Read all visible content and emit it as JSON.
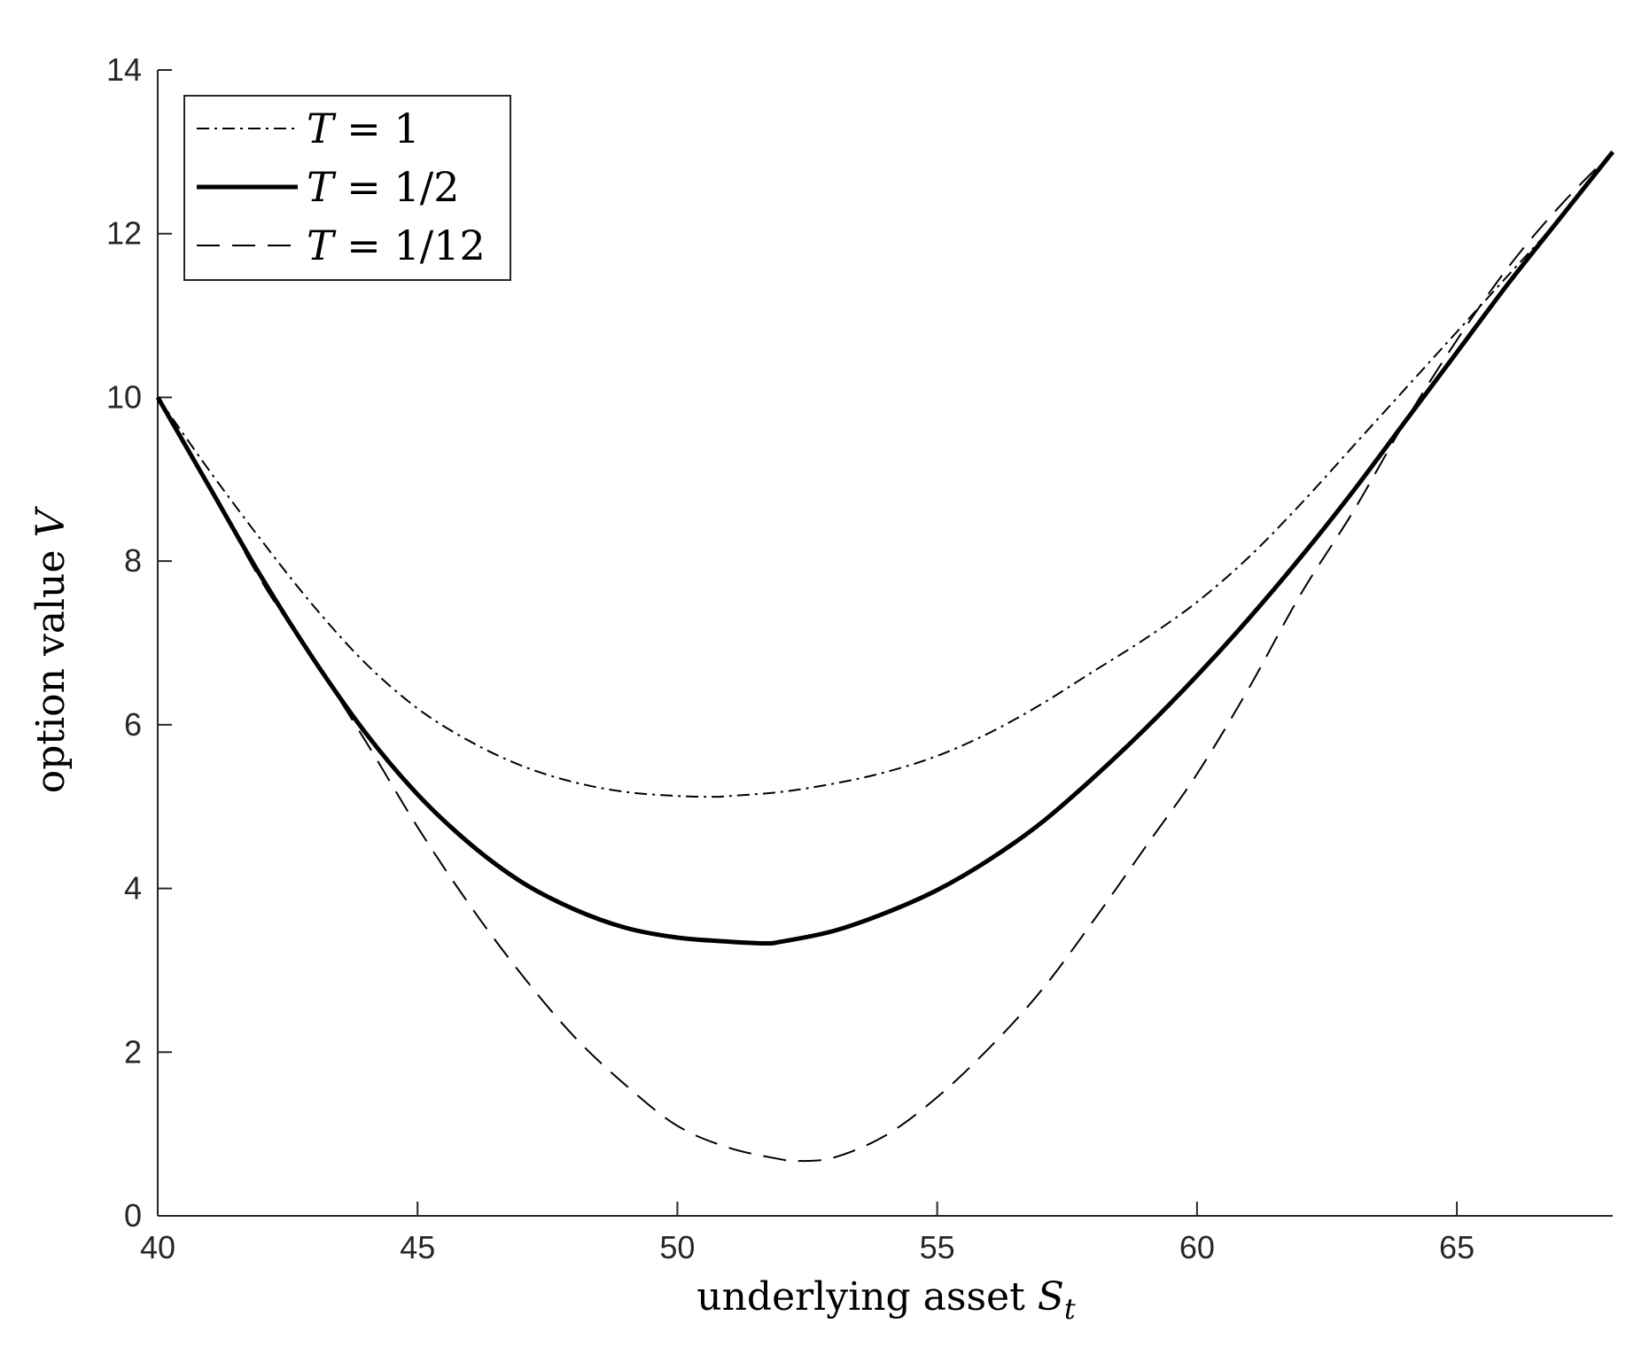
{
  "chart_data": {
    "type": "line",
    "title": "",
    "xlabel": {
      "text": "underlying asset ",
      "var": "S",
      "sub": "t"
    },
    "ylabel": {
      "text": "option value ",
      "var": "V"
    },
    "xlim": [
      40,
      68
    ],
    "ylim": [
      0,
      14
    ],
    "x_ticks": [
      40,
      45,
      50,
      55,
      60,
      65
    ],
    "y_ticks": [
      0,
      2,
      4,
      6,
      8,
      10,
      12,
      14
    ],
    "grid": false,
    "legend_position": "top-left",
    "series": [
      {
        "name": "T = 1",
        "style": "dashdot",
        "color": "#000000",
        "x": [
          40,
          41,
          42,
          43,
          44,
          45,
          46,
          47,
          48,
          49,
          50,
          50.7,
          51,
          52,
          53,
          54,
          55,
          56,
          57,
          58,
          59,
          60,
          61,
          62,
          63,
          64,
          65,
          66,
          67,
          68
        ],
        "y": [
          10,
          9.1,
          8.25,
          7.45,
          6.75,
          6.2,
          5.8,
          5.5,
          5.3,
          5.18,
          5.13,
          5.12,
          5.13,
          5.18,
          5.28,
          5.42,
          5.62,
          5.9,
          6.25,
          6.65,
          7.05,
          7.5,
          8.05,
          8.7,
          9.4,
          10.1,
          10.8,
          11.5,
          12.2,
          13.0
        ]
      },
      {
        "name": "T = 1/2",
        "style": "solid",
        "color": "#000000",
        "x": [
          40,
          41,
          42,
          43,
          44,
          45,
          46,
          47,
          48,
          49,
          50,
          51,
          51.7,
          52,
          53,
          54,
          55,
          56,
          57,
          58,
          59,
          60,
          61,
          62,
          63,
          64,
          65,
          66,
          67,
          68
        ],
        "y": [
          10,
          8.9,
          7.8,
          6.8,
          5.9,
          5.15,
          4.55,
          4.08,
          3.75,
          3.52,
          3.4,
          3.35,
          3.33,
          3.35,
          3.48,
          3.7,
          3.98,
          4.35,
          4.8,
          5.35,
          5.95,
          6.6,
          7.3,
          8.05,
          8.85,
          9.7,
          10.55,
          11.4,
          12.2,
          13.0
        ]
      },
      {
        "name": "T = 1/12",
        "style": "dashed",
        "color": "#000000",
        "x": [
          40,
          41,
          42,
          43,
          44,
          45,
          46,
          47,
          48,
          49,
          50,
          51,
          52,
          52.3,
          53,
          54,
          55,
          56,
          57,
          58,
          59,
          60,
          61,
          62,
          63,
          64,
          65,
          66,
          67,
          68
        ],
        "y": [
          10,
          8.9,
          7.75,
          6.8,
          5.8,
          4.75,
          3.8,
          2.95,
          2.2,
          1.6,
          1.1,
          0.83,
          0.69,
          0.67,
          0.71,
          0.98,
          1.45,
          2.05,
          2.75,
          3.6,
          4.5,
          5.4,
          6.45,
          7.6,
          8.6,
          9.7,
          10.7,
          11.6,
          12.35,
          13.0
        ]
      }
    ],
    "legend": {
      "entries": [
        {
          "var": "T",
          "rest": " = 1"
        },
        {
          "var": "T",
          "rest": " = 1/2"
        },
        {
          "var": "T",
          "rest": " = 1/12"
        }
      ]
    }
  }
}
